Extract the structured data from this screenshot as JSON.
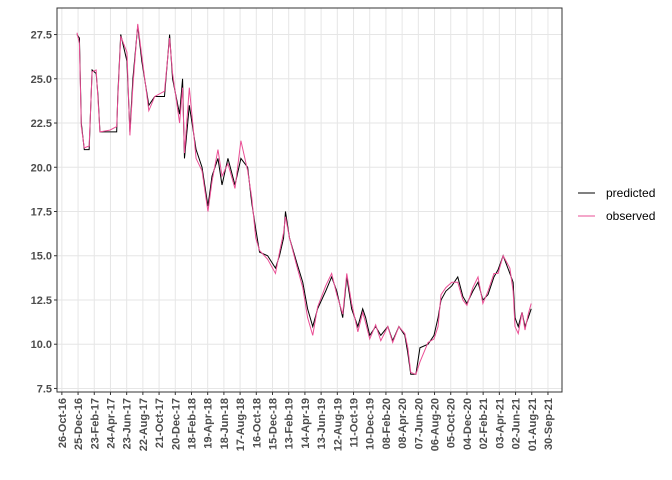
{
  "chart_data": {
    "type": "line",
    "x": [
      "2016-12-21",
      "2016-12-30",
      "2017-01-06",
      "2017-01-17",
      "2017-02-04",
      "2017-02-15",
      "2017-03-02",
      "2017-03-09",
      "2017-03-16",
      "2017-04-22",
      "2017-05-17",
      "2017-05-21",
      "2017-06-01",
      "2017-06-24",
      "2017-07-05",
      "2017-07-16",
      "2017-08-03",
      "2017-08-18",
      "2017-09-13",
      "2017-10-05",
      "2017-11-10",
      "2017-11-29",
      "2017-12-10",
      "2018-01-05",
      "2018-01-16",
      "2018-01-23",
      "2018-02-10",
      "2018-03-07",
      "2018-03-29",
      "2018-04-20",
      "2018-05-05",
      "2018-05-27",
      "2018-06-11",
      "2018-07-03",
      "2018-07-29",
      "2018-08-20",
      "2018-09-14",
      "2018-09-29",
      "2018-10-14",
      "2018-10-28",
      "2018-11-27",
      "2018-12-26",
      "2019-01-10",
      "2019-01-25",
      "2019-02-01",
      "2019-02-16",
      "2019-03-17",
      "2019-04-06",
      "2019-04-24",
      "2019-05-13",
      "2019-05-31",
      "2019-06-30",
      "2019-07-22",
      "2019-08-10",
      "2019-09-01",
      "2019-09-16",
      "2019-10-04",
      "2019-10-27",
      "2019-11-14",
      "2019-11-25",
      "2019-12-10",
      "2020-01-01",
      "2020-01-20",
      "2020-02-15",
      "2020-03-04",
      "2020-03-27",
      "2020-04-18",
      "2020-04-29",
      "2020-05-10",
      "2020-05-29",
      "2020-06-13",
      "2020-07-13",
      "2020-08-04",
      "2020-08-19",
      "2020-08-30",
      "2020-09-17",
      "2020-10-09",
      "2020-10-31",
      "2020-11-19",
      "2020-12-04",
      "2020-12-26",
      "2021-01-14",
      "2021-02-01",
      "2021-02-20",
      "2021-03-14",
      "2021-03-29",
      "2021-04-17",
      "2021-05-12",
      "2021-05-24",
      "2021-05-31",
      "2021-06-12",
      "2021-06-26",
      "2021-07-07",
      "2021-07-19",
      "2021-07-30"
    ],
    "series": [
      {
        "name": "predicted",
        "color": "#000000",
        "values": [
          27.5,
          27.3,
          22.5,
          21.0,
          21.0,
          25.5,
          25.3,
          24.0,
          22.0,
          22.0,
          22.0,
          24.0,
          27.5,
          26.0,
          22.0,
          25.0,
          28.0,
          26.0,
          23.5,
          24.0,
          24.0,
          27.5,
          25.0,
          23.0,
          25.0,
          20.5,
          23.5,
          21.0,
          20.0,
          17.8,
          19.5,
          20.5,
          19.0,
          20.5,
          19.0,
          20.5,
          20.0,
          18.0,
          16.5,
          15.2,
          15.0,
          14.3,
          15.0,
          16.0,
          17.5,
          16.0,
          14.5,
          13.5,
          12.0,
          11.0,
          12.0,
          13.0,
          13.8,
          13.0,
          11.5,
          13.8,
          12.0,
          11.0,
          12.0,
          11.5,
          10.5,
          11.0,
          10.5,
          11.0,
          10.2,
          11.0,
          10.5,
          9.5,
          8.3,
          8.3,
          9.8,
          10.0,
          10.5,
          11.5,
          12.5,
          13.0,
          13.3,
          13.8,
          12.7,
          12.3,
          13.0,
          13.5,
          12.5,
          12.8,
          13.8,
          14.2,
          15.0,
          14.0,
          13.5,
          11.5,
          11.0,
          11.8,
          11.0,
          11.5,
          12.0
        ]
      },
      {
        "name": "observed",
        "color": "#ea4f95",
        "values": [
          27.6,
          27.0,
          22.3,
          21.1,
          21.2,
          25.4,
          25.5,
          23.8,
          22.0,
          22.1,
          22.3,
          23.8,
          27.4,
          26.5,
          21.8,
          24.6,
          28.1,
          26.3,
          23.2,
          24.0,
          24.3,
          27.3,
          25.3,
          22.5,
          24.5,
          20.8,
          24.5,
          20.5,
          19.8,
          17.5,
          19.2,
          21.0,
          19.5,
          20.2,
          18.8,
          21.5,
          19.8,
          18.3,
          16.0,
          15.3,
          14.8,
          14.0,
          15.2,
          16.3,
          17.2,
          16.0,
          14.3,
          13.2,
          11.5,
          10.5,
          12.1,
          13.3,
          14.0,
          12.8,
          11.7,
          14.0,
          12.3,
          10.7,
          11.8,
          11.2,
          10.3,
          11.1,
          10.2,
          11.0,
          10.1,
          11.0,
          10.6,
          9.8,
          8.4,
          8.3,
          9.0,
          10.1,
          10.3,
          11.0,
          12.8,
          13.2,
          13.5,
          13.5,
          12.5,
          12.2,
          13.2,
          13.8,
          12.3,
          13.0,
          14.0,
          14.0,
          15.0,
          14.3,
          13.0,
          11.0,
          10.6,
          11.8,
          10.8,
          11.7,
          12.3
        ]
      }
    ],
    "xlim": [
      "2016-10-08",
      "2021-11-21"
    ],
    "xticks": [
      {
        "value": "2016-10-26",
        "label": "26-Oct-16"
      },
      {
        "value": "2016-12-25",
        "label": "25-Dec-16"
      },
      {
        "value": "2017-02-23",
        "label": "23-Feb-17"
      },
      {
        "value": "2017-04-24",
        "label": "24-Apr-17"
      },
      {
        "value": "2017-06-23",
        "label": "23-Jun-17"
      },
      {
        "value": "2017-08-22",
        "label": "22-Aug-17"
      },
      {
        "value": "2017-10-21",
        "label": "21-Oct-17"
      },
      {
        "value": "2017-12-20",
        "label": "20-Dec-17"
      },
      {
        "value": "2018-02-18",
        "label": "18-Feb-18"
      },
      {
        "value": "2018-04-19",
        "label": "19-Apr-18"
      },
      {
        "value": "2018-06-18",
        "label": "18-Jun-18"
      },
      {
        "value": "2018-08-17",
        "label": "17-Aug-18"
      },
      {
        "value": "2018-10-16",
        "label": "16-Oct-18"
      },
      {
        "value": "2018-12-15",
        "label": "15-Dec-18"
      },
      {
        "value": "2019-02-13",
        "label": "13-Feb-19"
      },
      {
        "value": "2019-04-14",
        "label": "14-Apr-19"
      },
      {
        "value": "2019-06-13",
        "label": "13-Jun-19"
      },
      {
        "value": "2019-08-12",
        "label": "12-Aug-19"
      },
      {
        "value": "2019-10-11",
        "label": "11-Oct-19"
      },
      {
        "value": "2019-12-10",
        "label": "10-Dec-19"
      },
      {
        "value": "2020-02-08",
        "label": "08-Feb-20"
      },
      {
        "value": "2020-04-08",
        "label": "08-Apr-20"
      },
      {
        "value": "2020-06-07",
        "label": "07-Jun-20"
      },
      {
        "value": "2020-08-06",
        "label": "06-Aug-20"
      },
      {
        "value": "2020-10-05",
        "label": "05-Oct-20"
      },
      {
        "value": "2020-12-04",
        "label": "04-Dec-20"
      },
      {
        "value": "2021-02-02",
        "label": "02-Feb-21"
      },
      {
        "value": "2021-04-03",
        "label": "03-Apr-21"
      },
      {
        "value": "2021-06-02",
        "label": "02-Jun-21"
      },
      {
        "value": "2021-08-01",
        "label": "01-Aug-21"
      },
      {
        "value": "2021-09-30",
        "label": "30-Sep-21"
      }
    ],
    "ylim": [
      7.3,
      29.0
    ],
    "yticks": [
      7.5,
      {
        "value": 10,
        "label": "10.0"
      },
      12.5,
      {
        "value": 15,
        "label": "15.0"
      },
      17.5,
      {
        "value": 20,
        "label": "20.0"
      },
      22.5,
      {
        "value": 25,
        "label": "25.0"
      },
      27.5
    ],
    "grid": true,
    "legend": "right"
  }
}
